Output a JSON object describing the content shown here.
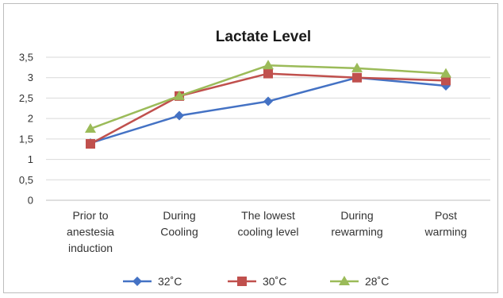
{
  "chart_data": {
    "type": "line",
    "title": "Lactate Level",
    "xlabel": "",
    "ylabel": "",
    "categories": [
      [
        "Prior to",
        "anestesia",
        "induction"
      ],
      [
        "During",
        "Cooling"
      ],
      [
        "The lowest",
        "cooling level"
      ],
      [
        "During",
        "rewarming"
      ],
      [
        "Post",
        "warming"
      ]
    ],
    "y_ticks": [
      "0",
      "0,5",
      "1",
      "1,5",
      "2",
      "2,5",
      "3",
      "3,5"
    ],
    "ylim": [
      0,
      3.5
    ],
    "grid": true,
    "legend_position": "bottom",
    "series": [
      {
        "name": "32˚C",
        "color": "#4472c4",
        "marker": "diamond",
        "values": [
          1.4,
          2.07,
          2.42,
          3.0,
          2.8
        ]
      },
      {
        "name": "30˚C",
        "color": "#c0504d",
        "marker": "square",
        "values": [
          1.38,
          2.55,
          3.1,
          3.0,
          2.93
        ]
      },
      {
        "name": "28˚C",
        "color": "#9bbb59",
        "marker": "triangle",
        "values": [
          1.75,
          2.55,
          3.3,
          3.23,
          3.1
        ]
      }
    ]
  }
}
